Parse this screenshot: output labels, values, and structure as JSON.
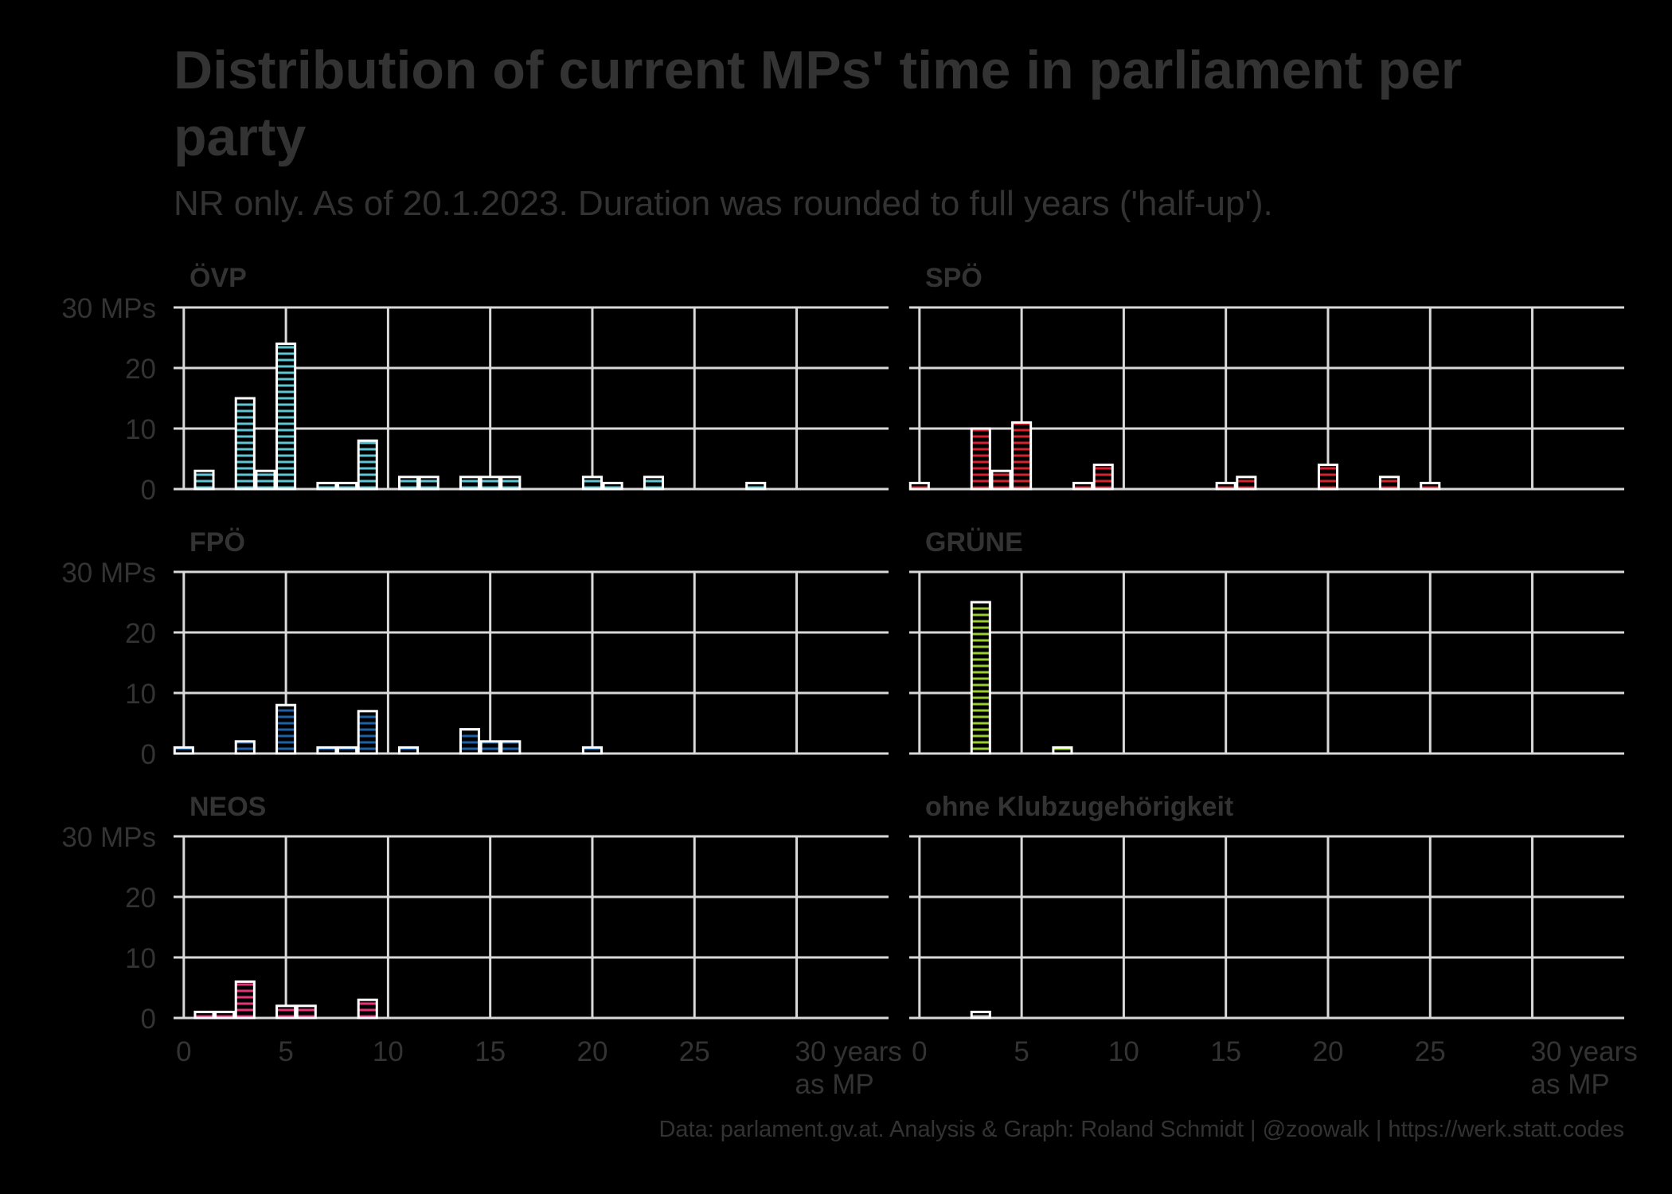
{
  "title": "Distribution of current MPs' time in parliament per party",
  "subtitle": "NR only. As of 20.1.2023. Duration was rounded to full years ('half-up').",
  "caption": "Data: parlament.gv.at. Analysis & Graph: Roland Schmidt | @zoowalk | https://werk.statt.codes",
  "colors": {
    "background": "#000000",
    "grid": "#D9D9D9",
    "text": "#333333",
    "bar_outline": "#FFFFFF"
  },
  "chart_data": {
    "type": "bar",
    "facet_layout": "3 rows x 2 columns",
    "x_ticks": [
      0,
      5,
      10,
      15,
      20,
      25,
      30
    ],
    "x_tick_labels": [
      "0",
      "5",
      "10",
      "15",
      "20",
      "25",
      "30 years"
    ],
    "x_tick_label_last_line2": "as MP",
    "y_ticks": [
      0,
      10,
      20,
      30
    ],
    "y_tick_labels": [
      "0",
      "10",
      "20",
      "30 MPs"
    ],
    "xlim": [
      -0.5,
      34.5
    ],
    "ylim": [
      0,
      30
    ],
    "grid": true,
    "panels": [
      {
        "name": "ÖVP",
        "color": "#5FC4D4",
        "x": [
          1,
          3,
          4,
          5,
          7,
          8,
          9,
          11,
          12,
          14,
          15,
          16,
          20,
          21,
          23,
          28
        ],
        "values": [
          3,
          15,
          3,
          24,
          1,
          1,
          8,
          2,
          2,
          2,
          2,
          2,
          2,
          1,
          2,
          1
        ]
      },
      {
        "name": "SPÖ",
        "color": "#D8222E",
        "x": [
          0,
          3,
          4,
          5,
          8,
          9,
          15,
          16,
          20,
          23,
          25
        ],
        "values": [
          1,
          10,
          3,
          11,
          1,
          4,
          1,
          2,
          4,
          2,
          1
        ]
      },
      {
        "name": "FPÖ",
        "color": "#1F5FA8",
        "x": [
          0,
          3,
          5,
          7,
          8,
          9,
          11,
          14,
          15,
          16,
          20
        ],
        "values": [
          1,
          2,
          8,
          1,
          1,
          7,
          1,
          4,
          2,
          2,
          1
        ]
      },
      {
        "name": "GRÜNE",
        "color": "#9ACD32",
        "x": [
          3,
          7
        ],
        "values": [
          25,
          1
        ]
      },
      {
        "name": "NEOS",
        "color": "#E8327C",
        "x": [
          1,
          2,
          3,
          5,
          6,
          9
        ],
        "values": [
          1,
          1,
          6,
          2,
          2,
          3
        ]
      },
      {
        "name": "ohne Klubzugehörigkeit",
        "color": "#BDBDBD",
        "x": [
          3
        ],
        "values": [
          1
        ]
      }
    ]
  }
}
